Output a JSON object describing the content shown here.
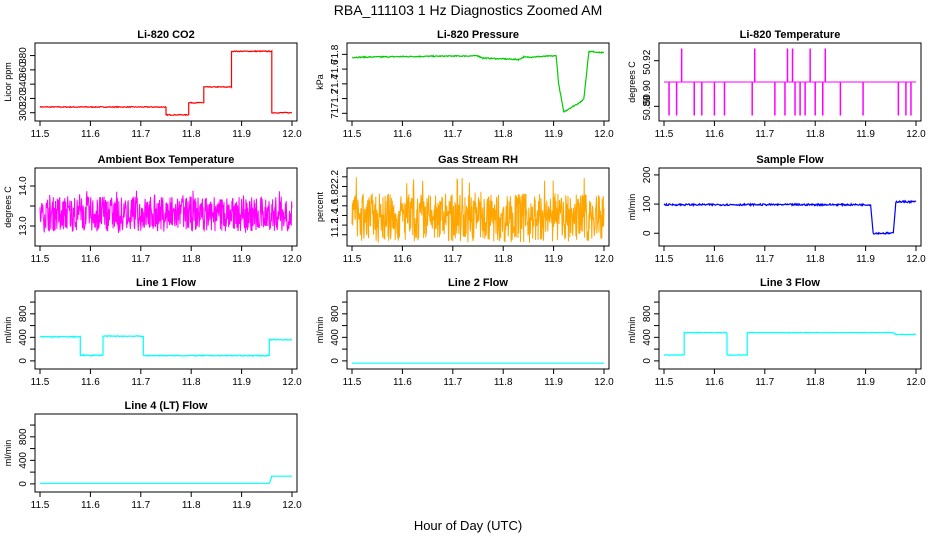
{
  "figure": {
    "title": "RBA_111103  1 Hz Diagnostics Zoomed AM",
    "xlabel": "Hour of Day (UTC)"
  },
  "chart_data": [
    {
      "type": "line",
      "title": "Li-820 CO2",
      "ylabel": "Licor ppm",
      "color": "#ff0000",
      "xlim": [
        11.5,
        12.0
      ],
      "ylim": [
        294,
        392
      ],
      "xticks": [
        11.5,
        11.6,
        11.7,
        11.8,
        11.9,
        12.0
      ],
      "yticks": [
        300,
        320,
        340,
        360,
        380
      ],
      "noise": 0.6,
      "series": [
        {
          "x": [
            11.5,
            11.75,
            11.75,
            11.795,
            11.795,
            11.825,
            11.825,
            11.88,
            11.88,
            11.96,
            11.96,
            12.0
          ],
          "values": [
            308,
            308,
            297,
            297,
            314,
            314,
            336,
            336,
            386,
            386,
            300,
            300
          ]
        }
      ]
    },
    {
      "type": "line",
      "title": "Li-820 Pressure",
      "ylabel": "kPa",
      "color": "#00cc00",
      "xlim": [
        11.5,
        12.0
      ],
      "ylim": [
        70.95,
        71.9
      ],
      "xticks": [
        11.5,
        11.6,
        11.7,
        11.8,
        11.9,
        12.0
      ],
      "yticks": [
        71.0,
        71.2,
        71.4,
        71.6,
        71.8
      ],
      "noise": 0.008,
      "series": [
        {
          "x": [
            11.5,
            11.6,
            11.75,
            11.76,
            11.83,
            11.84,
            11.905,
            11.91,
            11.92,
            11.955,
            11.96,
            11.97,
            11.99,
            12.0
          ],
          "values": [
            71.76,
            71.77,
            71.78,
            71.75,
            71.73,
            71.76,
            71.78,
            71.4,
            71.02,
            71.16,
            71.2,
            71.84,
            71.83,
            71.82
          ]
        }
      ]
    },
    {
      "type": "line",
      "title": "Li-820 Temperature",
      "ylabel": "degrees C",
      "color": "#ff00ff",
      "xlim": [
        11.5,
        12.0
      ],
      "ylim": [
        50.883,
        50.929
      ],
      "xticks": [
        11.5,
        11.6,
        11.7,
        11.8,
        11.9,
        12.0
      ],
      "yticks": [
        50.89,
        50.92
      ],
      "ytick_labels": [
        "50.89",
        "50.90",
        "50.92"
      ],
      "yticks_labeled": [
        50.889,
        50.899,
        50.919
      ],
      "baseline": 50.906,
      "spikes_up": [
        11.535,
        11.68,
        11.745,
        11.755,
        11.79,
        11.82
      ],
      "spikes_down": [
        11.51,
        11.525,
        11.56,
        11.575,
        11.6,
        11.62,
        11.675,
        11.72,
        11.74,
        11.76,
        11.77,
        11.78,
        11.8,
        11.815,
        11.85,
        11.895,
        11.965,
        11.98,
        11.99
      ],
      "spike_up_level": 50.928,
      "spike_down_level": 50.884
    },
    {
      "type": "line",
      "title": "Ambient Box Temperature",
      "ylabel": "degrees C",
      "color": "#ff00ff",
      "xlim": [
        11.5,
        12.0
      ],
      "ylim": [
        12.6,
        14.35
      ],
      "xticks": [
        11.5,
        11.6,
        11.7,
        11.8,
        11.9,
        12.0
      ],
      "yticks": [
        13.0,
        13.5,
        14.0
      ],
      "ytick_labels": [
        "13.0",
        "",
        "14.0"
      ],
      "noise_band": [
        12.8,
        13.9
      ],
      "center": 13.3
    },
    {
      "type": "line",
      "title": "Gas Stream RH",
      "ylabel": "percent",
      "color": "#ffa500",
      "xlim": [
        11.5,
        12.0
      ],
      "ylim": [
        0.85,
        2.3
      ],
      "xticks": [
        11.5,
        11.6,
        11.7,
        11.8,
        11.9,
        12.0
      ],
      "yticks": [
        1.0,
        1.2,
        1.4,
        1.6,
        1.8,
        2.0,
        2.2
      ],
      "noise_band": [
        0.92,
        2.2
      ],
      "center": 1.35
    },
    {
      "type": "line",
      "title": "Sample Flow",
      "ylabel": "ml/min",
      "color": "#0000ff",
      "xlim": [
        11.5,
        12.0
      ],
      "ylim": [
        -30,
        210
      ],
      "xticks": [
        11.5,
        11.6,
        11.7,
        11.8,
        11.9,
        12.0
      ],
      "yticks": [
        0,
        100,
        200
      ],
      "noise": 3,
      "series": [
        {
          "x": [
            11.5,
            11.91,
            11.915,
            11.955,
            11.96,
            12.0
          ],
          "values": [
            98,
            98,
            0,
            0,
            108,
            108
          ]
        }
      ]
    },
    {
      "type": "line",
      "title": "Line 1 Flow",
      "ylabel": "ml/min",
      "color": "#00ffff",
      "xlim": [
        11.5,
        12.0
      ],
      "ylim": [
        -70,
        1120
      ],
      "xticks": [
        11.5,
        11.6,
        11.7,
        11.8,
        11.9,
        12.0
      ],
      "yticks": [
        0,
        200,
        400,
        600,
        800,
        1000
      ],
      "ytick_labels": [
        "0",
        "400",
        "800"
      ],
      "yticks_labeled": [
        0,
        400,
        800
      ],
      "noise": 8,
      "series": [
        {
          "x": [
            11.5,
            11.58,
            11.58,
            11.625,
            11.625,
            11.705,
            11.705,
            11.75,
            11.955,
            11.955,
            12.0
          ],
          "values": [
            410,
            410,
            95,
            95,
            420,
            420,
            90,
            90,
            90,
            360,
            360
          ]
        }
      ]
    },
    {
      "type": "line",
      "title": "Line 2 Flow",
      "ylabel": "ml/min",
      "color": "#00ffff",
      "xlim": [
        11.5,
        12.0
      ],
      "ylim": [
        -70,
        1120
      ],
      "xticks": [
        11.5,
        11.6,
        11.7,
        11.8,
        11.9,
        12.0
      ],
      "yticks": [
        0,
        200,
        400,
        600,
        800,
        1000
      ],
      "ytick_labels": [
        "0",
        "400",
        "800"
      ],
      "yticks_labeled": [
        0,
        400,
        800
      ],
      "noise": 0,
      "series": [
        {
          "x": [
            11.5,
            12.0
          ],
          "values": [
            -40,
            -40
          ]
        }
      ]
    },
    {
      "type": "line",
      "title": "Line 3 Flow",
      "ylabel": "ml/min",
      "color": "#00ffff",
      "xlim": [
        11.5,
        12.0
      ],
      "ylim": [
        -70,
        1120
      ],
      "xticks": [
        11.5,
        11.6,
        11.7,
        11.8,
        11.9,
        12.0
      ],
      "yticks": [
        0,
        200,
        400,
        600,
        800,
        1000
      ],
      "ytick_labels": [
        "0",
        "400",
        "800"
      ],
      "yticks_labeled": [
        0,
        400,
        800
      ],
      "noise": 5,
      "series": [
        {
          "x": [
            11.5,
            11.54,
            11.54,
            11.625,
            11.625,
            11.665,
            11.665,
            11.955,
            11.96,
            12.0
          ],
          "values": [
            100,
            100,
            480,
            480,
            100,
            100,
            480,
            480,
            450,
            450
          ]
        }
      ]
    },
    {
      "type": "line",
      "title": "Line 4 (LT) Flow",
      "ylabel": "ml/min",
      "color": "#00ffff",
      "xlim": [
        11.5,
        12.0
      ],
      "ylim": [
        -70,
        1120
      ],
      "xticks": [
        11.5,
        11.6,
        11.7,
        11.8,
        11.9,
        12.0
      ],
      "yticks": [
        0,
        200,
        400,
        600,
        800,
        1000
      ],
      "ytick_labels": [
        "0",
        "400",
        "800"
      ],
      "yticks_labeled": [
        0,
        400,
        800
      ],
      "noise": 0,
      "series": [
        {
          "x": [
            11.5,
            11.955,
            11.96,
            12.0
          ],
          "values": [
            10,
            10,
            130,
            130
          ]
        }
      ]
    }
  ]
}
